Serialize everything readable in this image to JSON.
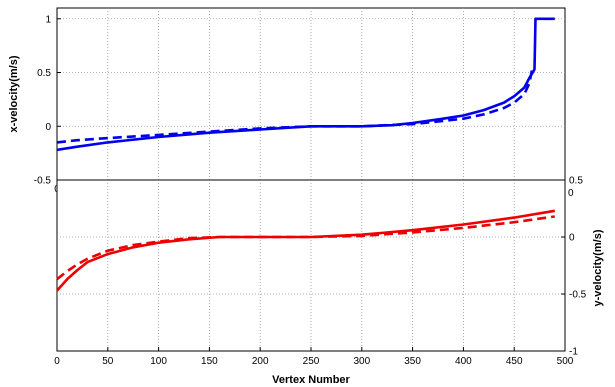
{
  "chart_data": [
    {
      "type": "line",
      "panel": "top",
      "title": "",
      "xlabel": "",
      "ylabel": "x-velocity(m/s)",
      "ylabel_side": "left",
      "xlim": [
        0,
        500
      ],
      "ylim": [
        -0.5,
        1.1
      ],
      "yticks": [
        -0.5,
        0,
        0.5,
        1
      ],
      "ytick_labels": [
        "-0.5",
        "0",
        "0.5",
        "1"
      ],
      "xtick_labels_visible": [
        "0"
      ],
      "grid": true,
      "grid_style": "dotted",
      "series": [
        {
          "style": "solid",
          "color": "#0000ee",
          "x": [
            0,
            20,
            50,
            100,
            150,
            200,
            250,
            300,
            330,
            350,
            380,
            400,
            420,
            440,
            450,
            460,
            465,
            470,
            471,
            475,
            490
          ],
          "y": [
            -0.22,
            -0.19,
            -0.15,
            -0.1,
            -0.06,
            -0.03,
            0.0,
            0.0,
            0.01,
            0.03,
            0.07,
            0.1,
            0.15,
            0.22,
            0.28,
            0.36,
            0.45,
            0.53,
            1.0,
            1.0,
            1.0
          ]
        },
        {
          "style": "dashed",
          "color": "#0000ee",
          "x": [
            0,
            20,
            50,
            100,
            150,
            200,
            250,
            300,
            350,
            380,
            400,
            420,
            440,
            450,
            460,
            465,
            468
          ],
          "y": [
            -0.15,
            -0.13,
            -0.11,
            -0.08,
            -0.05,
            -0.02,
            0.0,
            0.0,
            0.02,
            0.05,
            0.07,
            0.11,
            0.17,
            0.22,
            0.3,
            0.4,
            0.55
          ]
        }
      ]
    },
    {
      "type": "line",
      "panel": "bottom",
      "title": "",
      "xlabel": "Vertex Number",
      "ylabel": "y-velocity(m/s)",
      "ylabel_side": "right",
      "xlim": [
        0,
        500
      ],
      "ylim": [
        -1,
        0.5
      ],
      "yticks": [
        -1,
        -0.5,
        0,
        0.5
      ],
      "ytick_labels": [
        "-1",
        "-0.5",
        "0",
        "0.5"
      ],
      "xticks": [
        0,
        50,
        100,
        150,
        200,
        250,
        300,
        350,
        400,
        450,
        500
      ],
      "xtick_labels": [
        "0",
        "50",
        "100",
        "150",
        "200",
        "250",
        "300",
        "350",
        "400",
        "450",
        "500"
      ],
      "grid": true,
      "grid_style": "dotted",
      "series": [
        {
          "style": "solid",
          "color": "#ee0000",
          "x": [
            0,
            10,
            20,
            30,
            50,
            75,
            100,
            130,
            160,
            200,
            250,
            300,
            350,
            400,
            450,
            490
          ],
          "y": [
            -0.47,
            -0.37,
            -0.29,
            -0.22,
            -0.15,
            -0.09,
            -0.05,
            -0.02,
            0.0,
            0.0,
            0.0,
            0.02,
            0.06,
            0.11,
            0.17,
            0.23
          ]
        },
        {
          "style": "dashed",
          "color": "#ee0000",
          "x": [
            0,
            10,
            20,
            30,
            50,
            75,
            100,
            130,
            160,
            200,
            250,
            300,
            350,
            400,
            450,
            490
          ],
          "y": [
            -0.37,
            -0.3,
            -0.24,
            -0.19,
            -0.12,
            -0.07,
            -0.04,
            -0.01,
            0.0,
            0.0,
            0.0,
            0.01,
            0.04,
            0.08,
            0.13,
            0.18
          ]
        }
      ]
    }
  ],
  "colors": {
    "blue_series": "#0000ee",
    "red_series": "#ee0000",
    "grid": "#9a9a9a",
    "axes": "#000000"
  }
}
